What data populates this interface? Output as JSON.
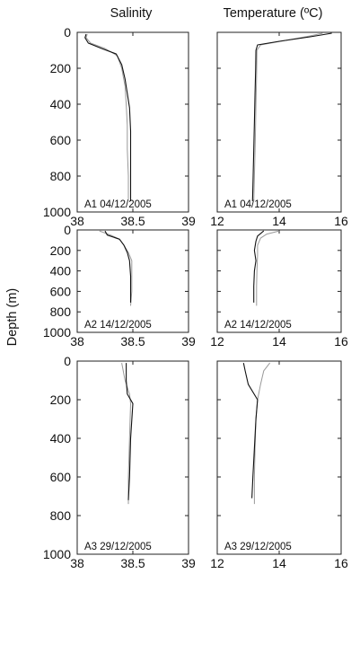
{
  "figure": {
    "column_titles": [
      "Salinity",
      "Temperature (ºC)"
    ],
    "ylabel": "Depth (m)"
  },
  "chart_data": [
    {
      "type": "line",
      "title": "Salinity",
      "annotation": "A1   04/12/2005",
      "xlabel": "",
      "ylabel": "Depth (m)",
      "xlim": [
        38,
        39
      ],
      "ylim": [
        0,
        1000
      ],
      "y_inverted": true,
      "xticks": [
        "38",
        "38.5",
        "39"
      ],
      "yticks": [
        "0",
        "200",
        "400",
        "600",
        "800",
        "1000"
      ],
      "colors": {
        "series_1": "#111111",
        "series_2": "#999999"
      },
      "series": [
        {
          "x": [
            38.08,
            38.07,
            38.1,
            38.22,
            38.35,
            38.4,
            38.43,
            38.45,
            38.47,
            38.48,
            38.48,
            38.48,
            38.48
          ],
          "y": [
            10,
            30,
            60,
            90,
            120,
            180,
            260,
            340,
            420,
            550,
            700,
            850,
            940
          ]
        },
        {
          "x": [
            38.09,
            38.08,
            38.12,
            38.25,
            38.36,
            38.4,
            38.43,
            38.44,
            38.45,
            38.45,
            38.46,
            38.46
          ],
          "y": [
            10,
            30,
            60,
            90,
            130,
            200,
            300,
            400,
            520,
            650,
            800,
            930
          ]
        }
      ]
    },
    {
      "type": "line",
      "title": "Temperature (ºC)",
      "annotation": "A1   04/12/2005",
      "xlabel": "",
      "ylabel": "",
      "xlim": [
        12,
        16
      ],
      "ylim": [
        0,
        1000
      ],
      "y_inverted": true,
      "xticks": [
        "12",
        "14",
        "16"
      ],
      "yticks": [],
      "colors": {
        "series_1": "#111111",
        "series_2": "#999999"
      },
      "series": [
        {
          "x": [
            15.7,
            15.0,
            14.0,
            13.3,
            13.25,
            13.24,
            13.22,
            13.2,
            13.18,
            13.16,
            13.14
          ],
          "y": [
            5,
            25,
            50,
            70,
            100,
            200,
            340,
            500,
            650,
            800,
            940
          ]
        },
        {
          "x": [
            15.4,
            15.0,
            14.2,
            13.4,
            13.28,
            13.27,
            13.25,
            13.23,
            13.2,
            13.18
          ],
          "y": [
            5,
            20,
            45,
            70,
            100,
            250,
            400,
            600,
            800,
            940
          ]
        }
      ]
    },
    {
      "type": "line",
      "title": "",
      "annotation": "A2   14/12/2005",
      "xlabel": "",
      "ylabel": "",
      "xlim": [
        38,
        39
      ],
      "ylim": [
        0,
        1000
      ],
      "y_inverted": true,
      "xticks": [
        "38",
        "38.5",
        "39"
      ],
      "yticks": [
        "0",
        "200",
        "400",
        "600",
        "800",
        "1000"
      ],
      "colors": {
        "series_1": "#111111",
        "series_2": "#999999"
      },
      "series": [
        {
          "x": [
            38.25,
            38.27,
            38.38,
            38.42,
            38.45,
            38.47,
            38.48,
            38.48,
            38.48
          ],
          "y": [
            10,
            50,
            90,
            150,
            220,
            300,
            450,
            600,
            710
          ]
        },
        {
          "x": [
            38.2,
            38.3,
            38.38,
            38.42,
            38.46,
            38.49,
            38.49,
            38.49,
            38.48
          ],
          "y": [
            10,
            50,
            90,
            150,
            220,
            300,
            450,
            600,
            740
          ]
        }
      ]
    },
    {
      "type": "line",
      "title": "",
      "annotation": "A2   14/12/2005",
      "xlabel": "",
      "ylabel": "",
      "xlim": [
        12,
        16
      ],
      "ylim": [
        0,
        1000
      ],
      "y_inverted": true,
      "xticks": [
        "12",
        "14",
        "16"
      ],
      "yticks": [],
      "colors": {
        "series_1": "#111111",
        "series_2": "#999999"
      },
      "series": [
        {
          "x": [
            13.5,
            13.3,
            13.25,
            13.2,
            13.25,
            13.2,
            13.18,
            13.18
          ],
          "y": [
            10,
            60,
            110,
            200,
            300,
            400,
            550,
            710
          ]
        },
        {
          "x": [
            14.0,
            13.6,
            13.4,
            13.3,
            13.3,
            13.28,
            13.27,
            13.27
          ],
          "y": [
            10,
            40,
            80,
            150,
            250,
            400,
            550,
            740
          ]
        }
      ]
    },
    {
      "type": "line",
      "title": "",
      "annotation": "A3   29/12/2005",
      "xlabel": "",
      "ylabel": "",
      "xlim": [
        38,
        39
      ],
      "ylim": [
        0,
        1000
      ],
      "y_inverted": true,
      "xticks": [
        "38",
        "38.5",
        "39"
      ],
      "yticks": [
        "0",
        "200",
        "400",
        "600",
        "800",
        "1000"
      ],
      "colors": {
        "series_1": "#111111",
        "series_2": "#999999"
      },
      "series": [
        {
          "x": [
            38.44,
            38.44,
            38.45,
            38.5,
            38.48,
            38.47,
            38.46
          ],
          "y": [
            10,
            100,
            170,
            220,
            400,
            600,
            720
          ]
        },
        {
          "x": [
            38.4,
            38.43,
            38.47,
            38.48,
            38.47,
            38.46,
            38.46
          ],
          "y": [
            10,
            100,
            170,
            220,
            400,
            600,
            740
          ]
        }
      ]
    },
    {
      "type": "line",
      "title": "",
      "annotation": "A3   29/12/2005",
      "xlabel": "",
      "ylabel": "",
      "xlim": [
        12,
        16
      ],
      "ylim": [
        0,
        1000
      ],
      "y_inverted": true,
      "xticks": [
        "12",
        "14",
        "16"
      ],
      "yticks": [],
      "colors": {
        "series_1": "#111111",
        "series_2": "#999999"
      },
      "series": [
        {
          "x": [
            12.85,
            12.9,
            13.0,
            13.3,
            13.25,
            13.2,
            13.15,
            13.12
          ],
          "y": [
            10,
            50,
            120,
            200,
            300,
            450,
            600,
            710
          ]
        },
        {
          "x": [
            13.7,
            13.5,
            13.4,
            13.3,
            13.25,
            13.22,
            13.2,
            13.2
          ],
          "y": [
            10,
            50,
            120,
            200,
            300,
            450,
            600,
            740
          ]
        }
      ]
    }
  ]
}
